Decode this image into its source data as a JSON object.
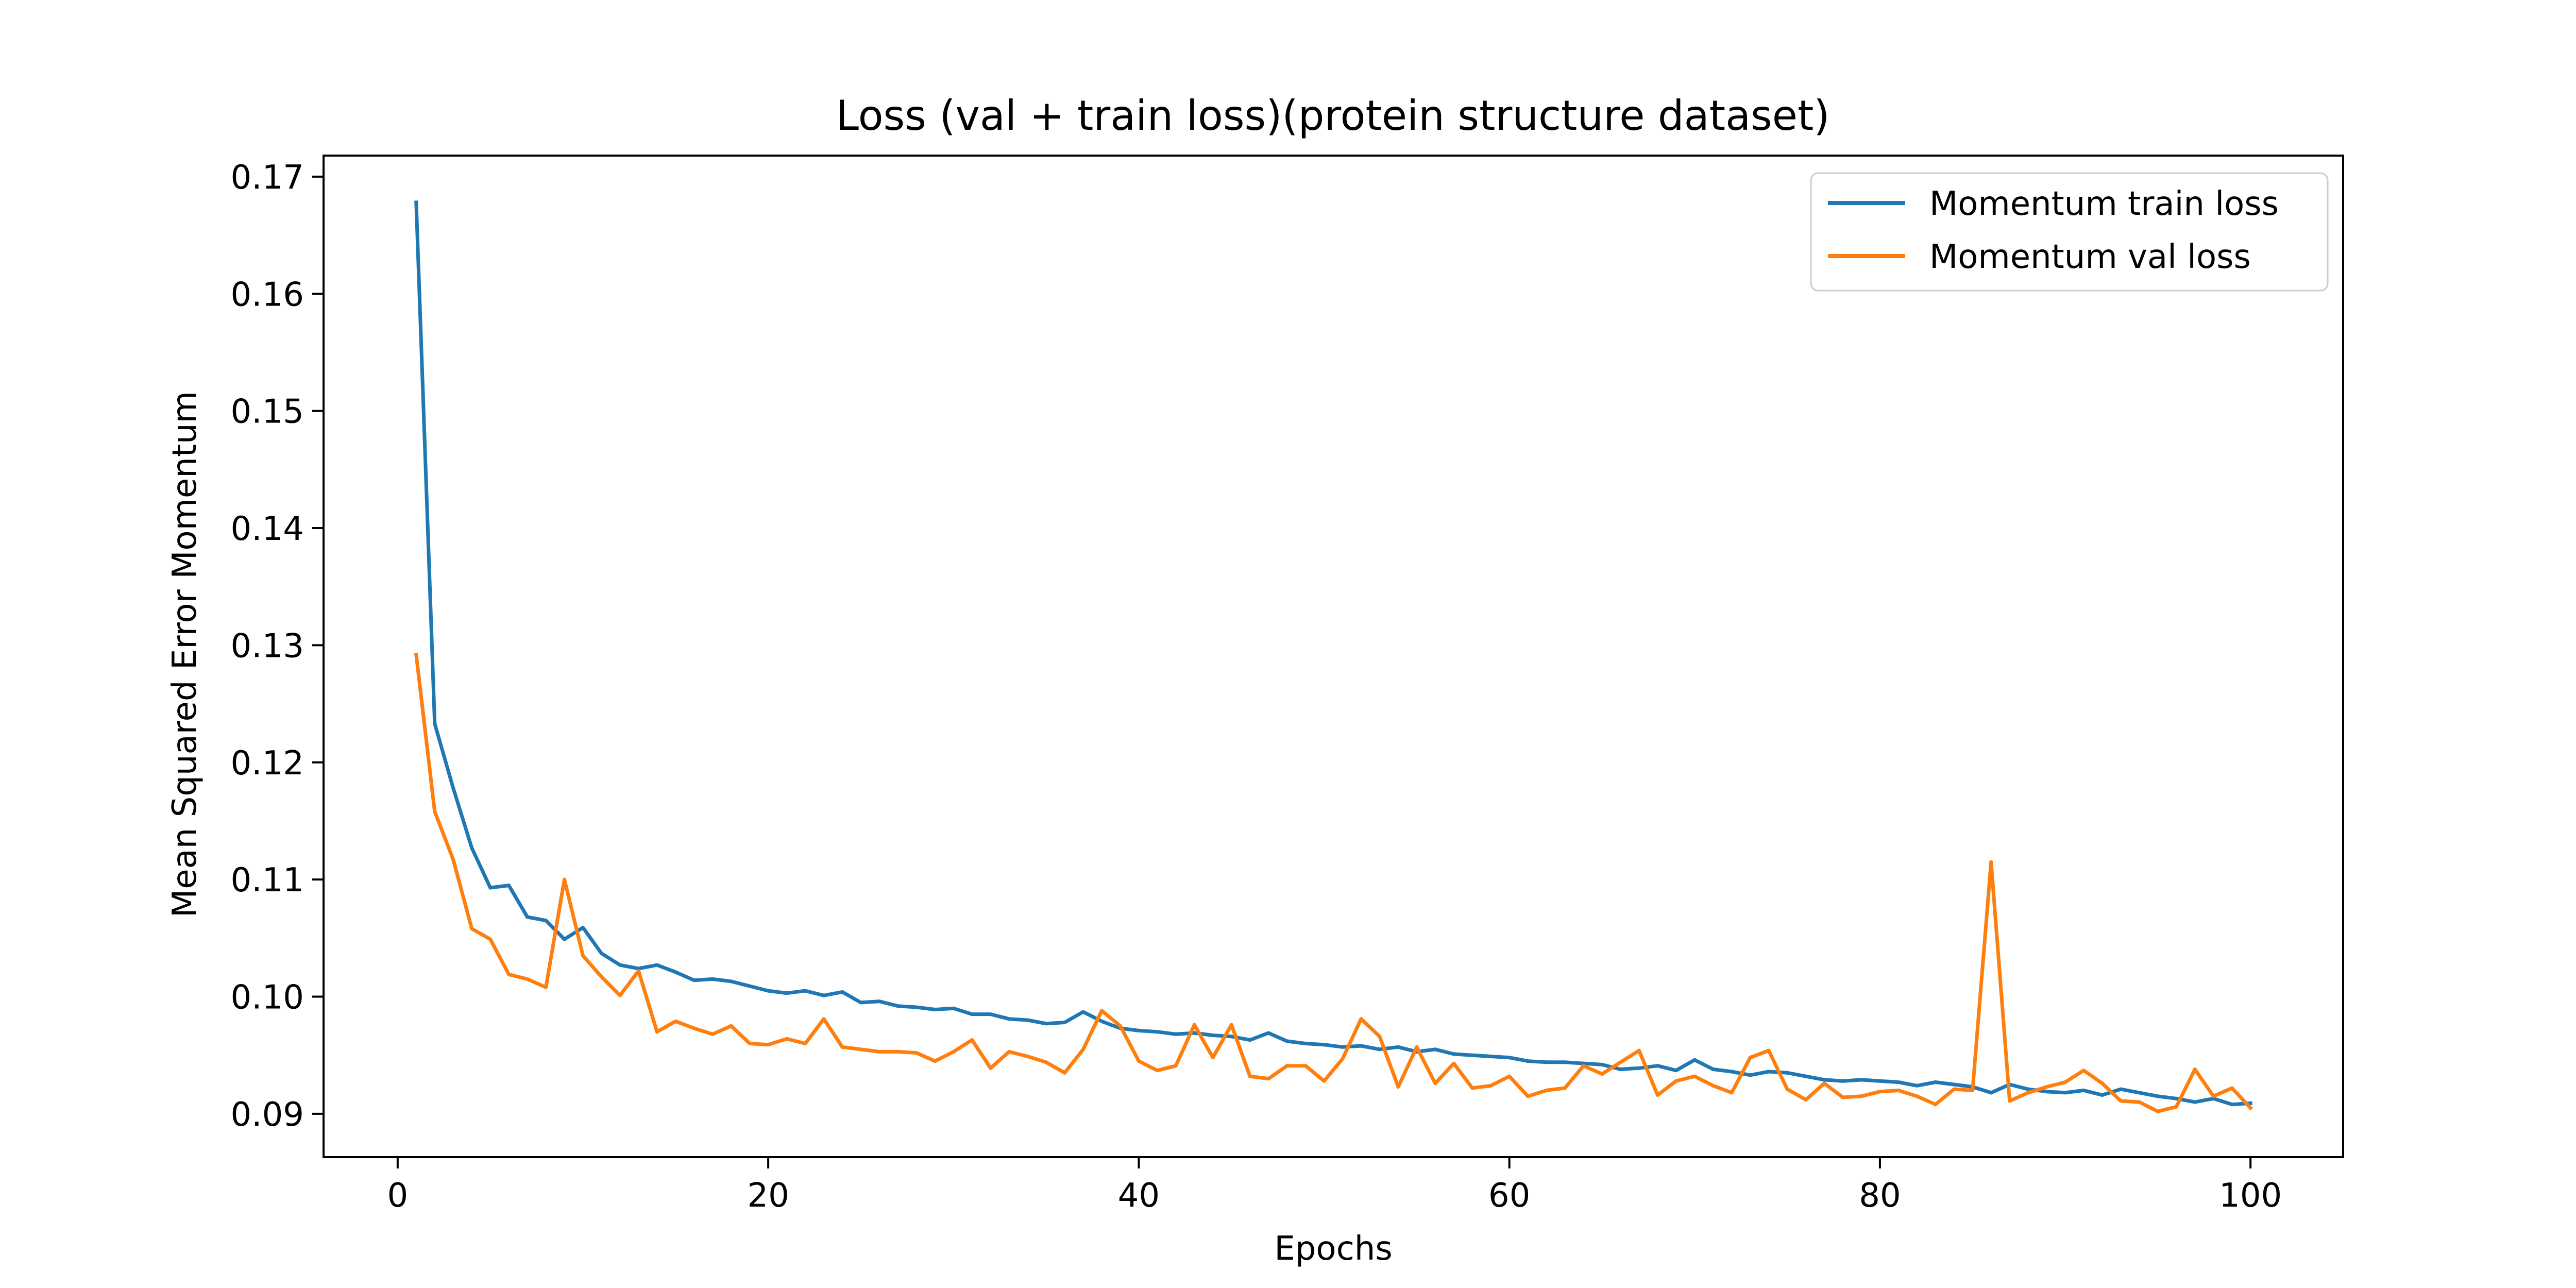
{
  "chart_data": {
    "type": "line",
    "title": "Loss (val + train loss)(protein structure dataset)",
    "xlabel": "Epochs",
    "ylabel": "Mean Squared Error Momentum",
    "xlim": [
      -4,
      105
    ],
    "ylim": [
      0.0863,
      0.1718
    ],
    "xticks": [
      0,
      20,
      40,
      60,
      80,
      100
    ],
    "yticks": [
      0.09,
      0.1,
      0.11,
      0.12,
      0.13,
      0.14,
      0.15,
      0.16,
      0.17
    ],
    "ytick_labels": [
      "0.09",
      "0.10",
      "0.11",
      "0.12",
      "0.13",
      "0.14",
      "0.15",
      "0.16",
      "0.17"
    ],
    "xtick_labels": [
      "0",
      "20",
      "40",
      "60",
      "80",
      "100"
    ],
    "grid": false,
    "legend_position": "top-right",
    "series": [
      {
        "name": "Momentum train loss",
        "color": "#1f77b4",
        "x": [
          1,
          2,
          3,
          4,
          5,
          6,
          7,
          8,
          9,
          10,
          11,
          12,
          13,
          14,
          15,
          16,
          17,
          18,
          19,
          20,
          21,
          22,
          23,
          24,
          25,
          26,
          27,
          28,
          29,
          30,
          31,
          32,
          33,
          34,
          35,
          36,
          37,
          38,
          39,
          40,
          41,
          42,
          43,
          44,
          45,
          46,
          47,
          48,
          49,
          50,
          51,
          52,
          53,
          54,
          55,
          56,
          57,
          58,
          59,
          60,
          61,
          62,
          63,
          64,
          65,
          66,
          67,
          68,
          69,
          70,
          71,
          72,
          73,
          74,
          75,
          76,
          77,
          78,
          79,
          80,
          81,
          82,
          83,
          84,
          85,
          86,
          87,
          88,
          89,
          90,
          91,
          92,
          93,
          94,
          95,
          96,
          97,
          98,
          99,
          100
        ],
        "values": [
          0.1678,
          0.1233,
          0.1178,
          0.1127,
          0.1093,
          0.1095,
          0.1068,
          0.1065,
          0.1049,
          0.1059,
          0.1037,
          0.1027,
          0.1024,
          0.1027,
          0.1021,
          0.1014,
          0.1015,
          0.1013,
          0.1009,
          0.1005,
          0.1003,
          0.1005,
          0.1001,
          0.1004,
          0.0995,
          0.0996,
          0.0992,
          0.0991,
          0.0989,
          0.099,
          0.0985,
          0.0985,
          0.0981,
          0.098,
          0.0977,
          0.0978,
          0.0987,
          0.0979,
          0.0973,
          0.0971,
          0.097,
          0.0968,
          0.0969,
          0.0967,
          0.0966,
          0.0963,
          0.0969,
          0.0962,
          0.096,
          0.0959,
          0.0957,
          0.0958,
          0.0955,
          0.0957,
          0.0953,
          0.0955,
          0.0951,
          0.095,
          0.0949,
          0.0948,
          0.0945,
          0.0944,
          0.0944,
          0.0943,
          0.0942,
          0.0938,
          0.0939,
          0.0941,
          0.0937,
          0.0946,
          0.0938,
          0.0936,
          0.0933,
          0.0936,
          0.0935,
          0.0932,
          0.0929,
          0.0928,
          0.0929,
          0.0928,
          0.0927,
          0.0924,
          0.0927,
          0.0925,
          0.0923,
          0.0918,
          0.0925,
          0.0921,
          0.0919,
          0.0918,
          0.092,
          0.0916,
          0.0921,
          0.0918,
          0.0915,
          0.0913,
          0.091,
          0.0913,
          0.0908,
          0.0909
        ]
      },
      {
        "name": "Momentum val loss",
        "color": "#ff7f0e",
        "x": [
          1,
          2,
          3,
          4,
          5,
          6,
          7,
          8,
          9,
          10,
          11,
          12,
          13,
          14,
          15,
          16,
          17,
          18,
          19,
          20,
          21,
          22,
          23,
          24,
          25,
          26,
          27,
          28,
          29,
          30,
          31,
          32,
          33,
          34,
          35,
          36,
          37,
          38,
          39,
          40,
          41,
          42,
          43,
          44,
          45,
          46,
          47,
          48,
          49,
          50,
          51,
          52,
          53,
          54,
          55,
          56,
          57,
          58,
          59,
          60,
          61,
          62,
          63,
          64,
          65,
          66,
          67,
          68,
          69,
          70,
          71,
          72,
          73,
          74,
          75,
          76,
          77,
          78,
          79,
          80,
          81,
          82,
          83,
          84,
          85,
          86,
          87,
          88,
          89,
          90,
          91,
          92,
          93,
          94,
          95,
          96,
          97,
          98,
          99,
          100
        ],
        "values": [
          0.1292,
          0.1158,
          0.1117,
          0.1058,
          0.1049,
          0.1019,
          0.1015,
          0.1008,
          0.11,
          0.1035,
          0.1017,
          0.1001,
          0.1022,
          0.097,
          0.0979,
          0.0973,
          0.0968,
          0.0975,
          0.096,
          0.0959,
          0.0964,
          0.096,
          0.0981,
          0.0957,
          0.0955,
          0.0953,
          0.0953,
          0.0952,
          0.0945,
          0.0953,
          0.0963,
          0.0939,
          0.0953,
          0.0949,
          0.0944,
          0.0935,
          0.0955,
          0.0988,
          0.0975,
          0.0945,
          0.0937,
          0.0941,
          0.0976,
          0.0948,
          0.0976,
          0.0932,
          0.093,
          0.0941,
          0.0941,
          0.0928,
          0.0947,
          0.0981,
          0.0966,
          0.0923,
          0.0957,
          0.0926,
          0.0943,
          0.0922,
          0.0924,
          0.0932,
          0.0915,
          0.092,
          0.0922,
          0.0941,
          0.0934,
          0.0944,
          0.0954,
          0.0916,
          0.0928,
          0.0932,
          0.0924,
          0.0918,
          0.0948,
          0.0954,
          0.0921,
          0.0912,
          0.0926,
          0.0914,
          0.0915,
          0.0919,
          0.092,
          0.0915,
          0.0908,
          0.0921,
          0.092,
          0.1115,
          0.0911,
          0.0918,
          0.0923,
          0.0927,
          0.0937,
          0.0926,
          0.0911,
          0.091,
          0.0902,
          0.0906,
          0.0938,
          0.0915,
          0.0922,
          0.0905
        ]
      }
    ]
  }
}
